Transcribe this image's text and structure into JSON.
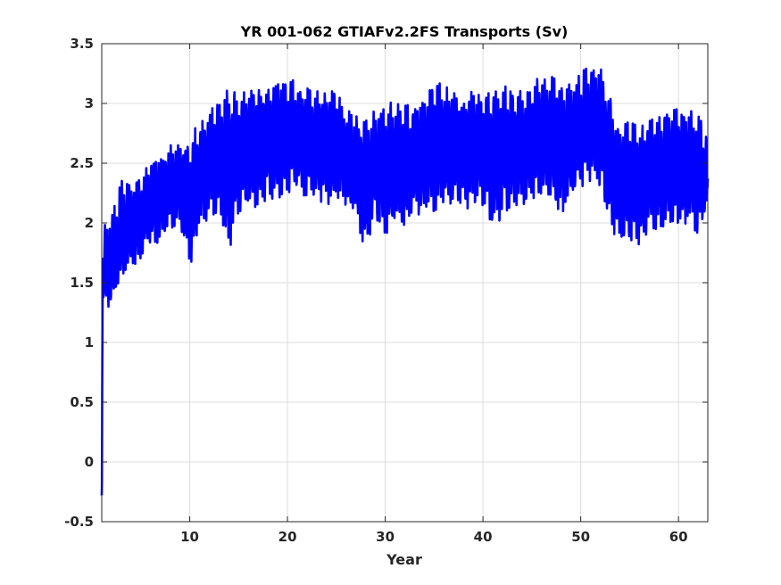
{
  "chart_data": {
    "type": "line",
    "title": "YR 001-062 GTIAFv2.2FS Transports (Sv)",
    "xlabel": "Year",
    "ylabel": "",
    "xlim": [
      1,
      63
    ],
    "ylim": [
      -0.5,
      3.5
    ],
    "xticks": [
      10,
      20,
      30,
      40,
      50,
      60
    ],
    "xtick_labels": [
      "10",
      "20",
      "30",
      "40",
      "50",
      "60"
    ],
    "yticks": [
      -0.5,
      0,
      0.5,
      1,
      1.5,
      2,
      2.5,
      3,
      3.5
    ],
    "ytick_labels": [
      "-0.5",
      "0",
      "0.5",
      "1",
      "1.5",
      "2",
      "2.5",
      "3",
      "3.5"
    ],
    "grid": true,
    "line_color": "#0000ff",
    "series": [
      {
        "cycles_per_year": 4,
        "start": [
          [
            1.0,
            -0.28
          ],
          [
            1.02,
            -0.2
          ],
          [
            1.05,
            0.6
          ],
          [
            1.08,
            1.3
          ],
          [
            1.12,
            1.7
          ]
        ],
        "upper_envelope": [
          [
            1,
            1.95
          ],
          [
            2,
            2.05
          ],
          [
            3,
            2.35
          ],
          [
            4,
            2.38
          ],
          [
            5,
            2.42
          ],
          [
            6,
            2.52
          ],
          [
            7,
            2.6
          ],
          [
            8,
            2.65
          ],
          [
            9,
            2.65
          ],
          [
            10,
            2.72
          ],
          [
            11,
            2.85
          ],
          [
            12,
            2.95
          ],
          [
            13,
            3.05
          ],
          [
            14,
            3.12
          ],
          [
            15,
            3.1
          ],
          [
            16,
            3.1
          ],
          [
            17,
            3.12
          ],
          [
            18,
            3.15
          ],
          [
            19,
            3.2
          ],
          [
            20,
            3.25
          ],
          [
            21,
            3.15
          ],
          [
            22,
            3.15
          ],
          [
            23,
            3.1
          ],
          [
            24,
            3.12
          ],
          [
            25,
            3.1
          ],
          [
            26,
            2.95
          ],
          [
            27,
            2.9
          ],
          [
            28,
            2.85
          ],
          [
            29,
            2.95
          ],
          [
            30,
            3.02
          ],
          [
            31,
            3.0
          ],
          [
            32,
            2.98
          ],
          [
            33,
            3.0
          ],
          [
            34,
            3.05
          ],
          [
            35,
            3.2
          ],
          [
            36,
            3.15
          ],
          [
            37,
            3.1
          ],
          [
            38,
            3.08
          ],
          [
            39,
            3.1
          ],
          [
            40,
            3.05
          ],
          [
            41,
            3.12
          ],
          [
            42,
            3.15
          ],
          [
            43,
            3.12
          ],
          [
            44,
            3.1
          ],
          [
            45,
            3.15
          ],
          [
            46,
            3.25
          ],
          [
            47,
            3.25
          ],
          [
            48,
            3.2
          ],
          [
            49,
            3.15
          ],
          [
            50,
            3.25
          ],
          [
            51,
            3.35
          ],
          [
            52,
            3.3
          ],
          [
            53,
            3.05
          ],
          [
            54,
            2.8
          ],
          [
            55,
            2.85
          ],
          [
            56,
            2.8
          ],
          [
            57,
            2.85
          ],
          [
            58,
            2.9
          ],
          [
            59,
            2.95
          ],
          [
            60,
            2.95
          ],
          [
            61,
            2.95
          ],
          [
            62,
            2.9
          ],
          [
            63,
            2.75
          ]
        ],
        "lower_envelope": [
          [
            1,
            1.3
          ],
          [
            2,
            1.3
          ],
          [
            3,
            1.5
          ],
          [
            4,
            1.6
          ],
          [
            5,
            1.7
          ],
          [
            6,
            1.8
          ],
          [
            7,
            1.85
          ],
          [
            8,
            1.95
          ],
          [
            9,
            2.0
          ],
          [
            10,
            1.6
          ],
          [
            11,
            1.95
          ],
          [
            12,
            2.05
          ],
          [
            13,
            2.1
          ],
          [
            14,
            1.75
          ],
          [
            15,
            2.1
          ],
          [
            16,
            2.1
          ],
          [
            17,
            2.15
          ],
          [
            18,
            2.2
          ],
          [
            19,
            2.2
          ],
          [
            20,
            2.25
          ],
          [
            21,
            2.3
          ],
          [
            22,
            2.2
          ],
          [
            23,
            2.2
          ],
          [
            24,
            2.15
          ],
          [
            25,
            2.2
          ],
          [
            26,
            2.15
          ],
          [
            27,
            2.05
          ],
          [
            28,
            1.75
          ],
          [
            29,
            2.05
          ],
          [
            30,
            1.9
          ],
          [
            31,
            2.0
          ],
          [
            32,
            1.95
          ],
          [
            33,
            2.05
          ],
          [
            34,
            2.1
          ],
          [
            35,
            2.1
          ],
          [
            36,
            2.15
          ],
          [
            37,
            2.15
          ],
          [
            38,
            2.1
          ],
          [
            39,
            2.15
          ],
          [
            40,
            2.15
          ],
          [
            41,
            1.95
          ],
          [
            42,
            2.05
          ],
          [
            43,
            2.15
          ],
          [
            44,
            2.15
          ],
          [
            45,
            2.2
          ],
          [
            46,
            2.25
          ],
          [
            47,
            2.2
          ],
          [
            48,
            2.05
          ],
          [
            49,
            2.2
          ],
          [
            50,
            2.3
          ],
          [
            51,
            2.35
          ],
          [
            52,
            2.3
          ],
          [
            53,
            1.95
          ],
          [
            54,
            1.85
          ],
          [
            55,
            1.85
          ],
          [
            56,
            1.8
          ],
          [
            57,
            1.95
          ],
          [
            58,
            1.95
          ],
          [
            59,
            2.0
          ],
          [
            60,
            1.95
          ],
          [
            61,
            2.0
          ],
          [
            62,
            1.9
          ],
          [
            63,
            2.1
          ]
        ]
      }
    ]
  }
}
